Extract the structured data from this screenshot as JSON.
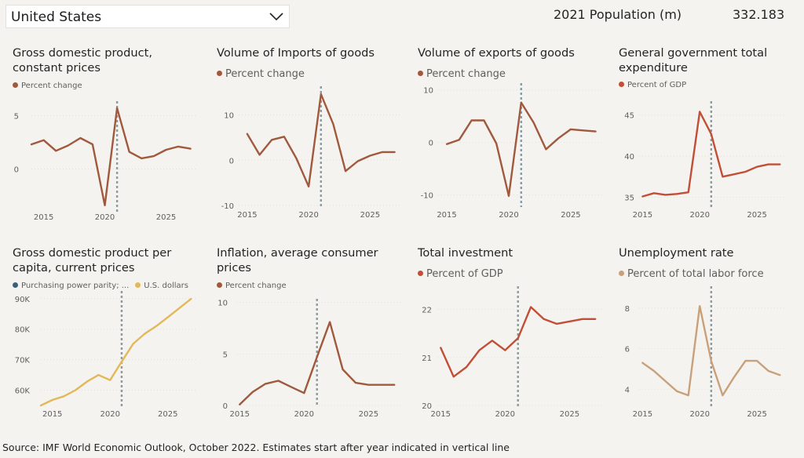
{
  "header": {
    "country": "United States",
    "population_label": "2021 Population (m)",
    "population_value": "332.183"
  },
  "footer": {
    "source": "Source: IMF World Economic Outlook, October 2022. Estimates start after year indicated in vertical line"
  },
  "colors": {
    "brown": "#a0593d",
    "red": "#c14f37",
    "gold": "#e2b95a",
    "tan": "#c8a07a",
    "slate": "#3d5f76",
    "marker": "#8a9ca3"
  },
  "chart_data": [
    {
      "type": "line",
      "title": "Gross domestic product, constant prices",
      "legend": [
        {
          "label": "Percent change",
          "color": "brown"
        }
      ],
      "x": [
        2014,
        2015,
        2016,
        2017,
        2018,
        2019,
        2020,
        2021,
        2022,
        2023,
        2024,
        2025,
        2026,
        2027
      ],
      "series": [
        {
          "name": "Percent change",
          "color": "brown",
          "values": [
            2.3,
            2.7,
            1.7,
            2.2,
            2.9,
            2.3,
            -3.4,
            5.7,
            1.6,
            1.0,
            1.2,
            1.8,
            2.1,
            1.9
          ]
        }
      ],
      "xticks": [
        2015,
        2020,
        2025
      ],
      "yticks": [
        0,
        5
      ],
      "ylim": [
        -4,
        6.2
      ],
      "vline": 2021
    },
    {
      "type": "line",
      "title": "Volume of Imports of goods",
      "legend": [
        {
          "label": "Percent change",
          "color": "brown"
        }
      ],
      "x": [
        2015,
        2016,
        2017,
        2018,
        2019,
        2020,
        2021,
        2022,
        2023,
        2024,
        2025,
        2026,
        2027
      ],
      "series": [
        {
          "name": "Percent change",
          "color": "brown",
          "values": [
            5.8,
            1.2,
            4.5,
            5.2,
            0.4,
            -5.8,
            14.6,
            8.0,
            -2.4,
            -0.2,
            1.0,
            1.8,
            1.8
          ]
        }
      ],
      "xticks": [
        2015,
        2020,
        2025
      ],
      "yticks": [
        -10,
        0,
        10
      ],
      "ylim": [
        -10,
        16
      ],
      "vline": 2021
    },
    {
      "type": "line",
      "title": "Volume of exports of goods",
      "legend": [
        {
          "label": "Percent change",
          "color": "brown"
        }
      ],
      "x": [
        2015,
        2016,
        2017,
        2018,
        2019,
        2020,
        2021,
        2022,
        2023,
        2024,
        2025,
        2026,
        2027
      ],
      "series": [
        {
          "name": "Percent change",
          "color": "brown",
          "values": [
            -0.3,
            0.5,
            4.2,
            4.2,
            -0.2,
            -10.2,
            7.6,
            3.8,
            -1.3,
            0.8,
            2.5,
            2.3,
            2.1
          ]
        }
      ],
      "xticks": [
        2015,
        2020,
        2025
      ],
      "yticks": [
        -10,
        0,
        10
      ],
      "ylim": [
        -12,
        11
      ],
      "vline": 2021
    },
    {
      "type": "line",
      "title": "General government total expenditure",
      "legend": [
        {
          "label": "Percent of GDP",
          "color": "red"
        }
      ],
      "x": [
        2015,
        2016,
        2017,
        2018,
        2019,
        2020,
        2021,
        2022,
        2023,
        2024,
        2025,
        2026,
        2027
      ],
      "series": [
        {
          "name": "Percent of GDP",
          "color": "red",
          "values": [
            35.1,
            35.5,
            35.3,
            35.4,
            35.6,
            45.4,
            42.7,
            37.5,
            37.8,
            38.1,
            38.7,
            39.0,
            39.0
          ]
        }
      ],
      "xticks": [
        2015,
        2020,
        2025
      ],
      "yticks": [
        35,
        40,
        45
      ],
      "ylim": [
        34,
        46.5
      ],
      "vline": 2021
    },
    {
      "type": "line",
      "title": "Gross domestic product per capita, current prices",
      "legend": [
        {
          "label": "Purchasing power parity; ...",
          "color": "slate"
        },
        {
          "label": "U.S. dollars",
          "color": "gold"
        }
      ],
      "x": [
        2014,
        2015,
        2016,
        2017,
        2018,
        2019,
        2020,
        2021,
        2022,
        2023,
        2024,
        2025,
        2026,
        2027
      ],
      "series": [
        {
          "name": "U.S. dollars",
          "color": "gold",
          "values": [
            55000,
            56800,
            58000,
            60000,
            62800,
            65000,
            63300,
            69300,
            75200,
            78500,
            81000,
            83900,
            86900,
            89900
          ]
        }
      ],
      "xticks": [
        2015,
        2020,
        2025
      ],
      "yticks": [
        60000,
        70000,
        80000,
        90000
      ],
      "ytick_labels": [
        "60K",
        "70K",
        "80K",
        "90K"
      ],
      "ylim": [
        55000,
        92000
      ],
      "vline": 2021
    },
    {
      "type": "line",
      "title": "Inflation, average consumer prices",
      "legend": [
        {
          "label": "Percent change",
          "color": "brown"
        }
      ],
      "x": [
        2015,
        2016,
        2017,
        2018,
        2019,
        2020,
        2021,
        2022,
        2023,
        2024,
        2025,
        2026,
        2027
      ],
      "series": [
        {
          "name": "Percent change",
          "color": "brown",
          "values": [
            0.1,
            1.3,
            2.1,
            2.4,
            1.8,
            1.2,
            4.7,
            8.1,
            3.5,
            2.2,
            2.0,
            2.0,
            2.0
          ]
        }
      ],
      "xticks": [
        2015,
        2020,
        2025
      ],
      "yticks": [
        0,
        5,
        10
      ],
      "ylim": [
        0,
        10.2
      ],
      "vline": 2021
    },
    {
      "type": "line",
      "title": "Total investment",
      "legend": [
        {
          "label": "Percent of GDP",
          "color": "red"
        }
      ],
      "x": [
        2015,
        2016,
        2017,
        2018,
        2019,
        2020,
        2021,
        2022,
        2023,
        2024,
        2025,
        2026,
        2027
      ],
      "series": [
        {
          "name": "Percent of GDP",
          "color": "red",
          "values": [
            21.2,
            20.6,
            20.8,
            21.15,
            21.35,
            21.15,
            21.4,
            22.05,
            21.8,
            21.7,
            21.75,
            21.8,
            21.8
          ]
        }
      ],
      "xticks": [
        2015,
        2020,
        2025
      ],
      "yticks": [
        20,
        21,
        22
      ],
      "ylim": [
        20,
        22.45
      ],
      "vline": 2021
    },
    {
      "type": "line",
      "title": "Unemployment rate",
      "legend": [
        {
          "label": "Percent of total labor force",
          "color": "tan"
        }
      ],
      "x": [
        2015,
        2016,
        2017,
        2018,
        2019,
        2020,
        2021,
        2022,
        2023,
        2024,
        2025,
        2026,
        2027
      ],
      "series": [
        {
          "name": "Percent of total labor force",
          "color": "tan",
          "values": [
            5.3,
            4.9,
            4.4,
            3.9,
            3.7,
            8.1,
            5.4,
            3.7,
            4.6,
            5.4,
            5.4,
            4.9,
            4.7
          ]
        }
      ],
      "xticks": [
        2015,
        2020,
        2025
      ],
      "yticks": [
        4,
        6,
        8
      ],
      "ylim": [
        3.2,
        9.0
      ],
      "vline": 2021
    }
  ]
}
